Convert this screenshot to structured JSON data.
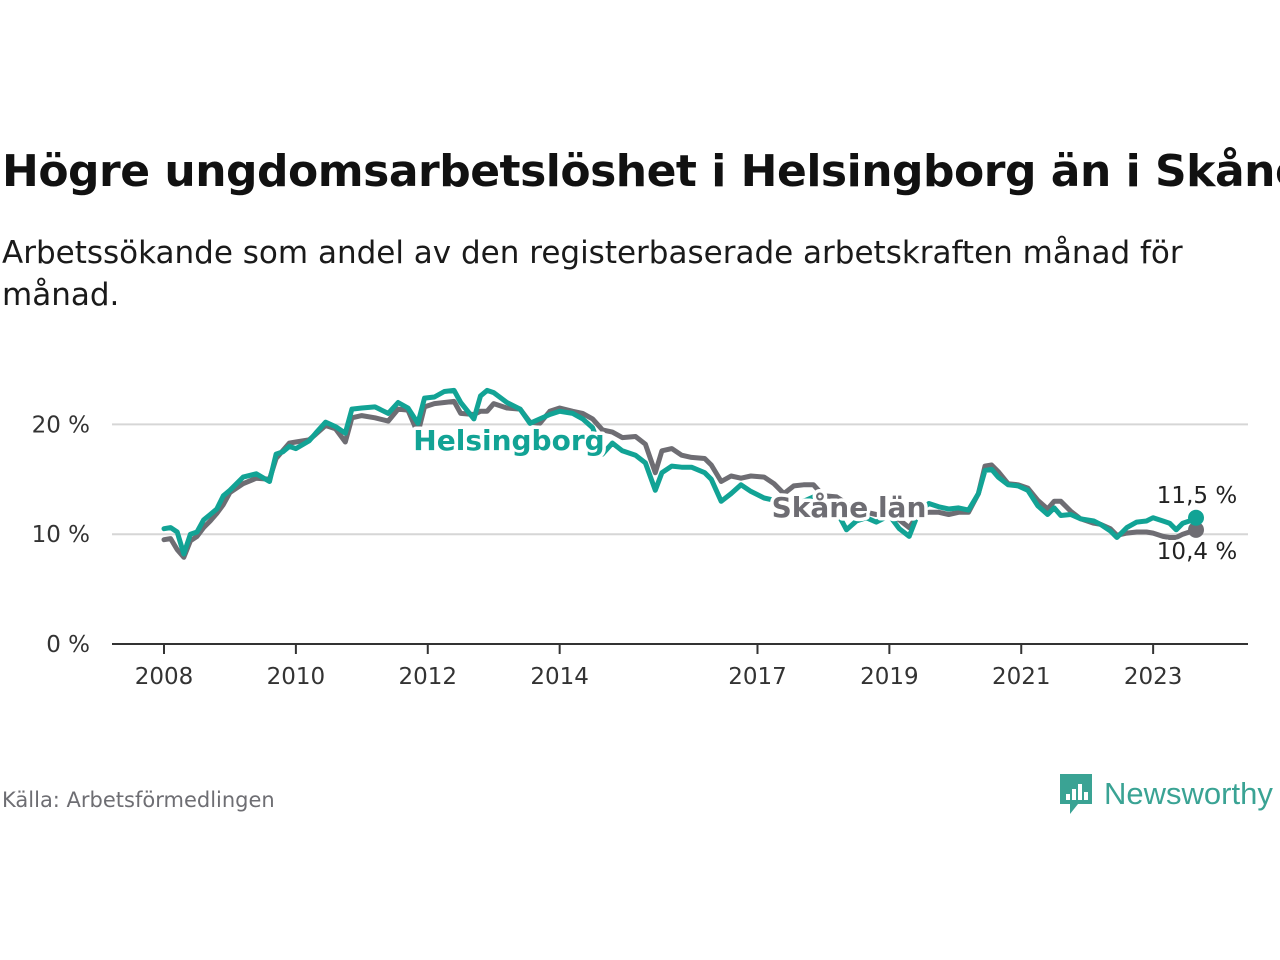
{
  "header": {
    "title": "Högre ungdomsarbetslöshet i Helsingborg än i Skåne",
    "subtitle": "Arbetssökande som andel av den registerbaserade arbetskraften månad för månad."
  },
  "footer": {
    "source": "Källa: Arbetsförmedlingen",
    "brand": "Newsworthy"
  },
  "colors": {
    "helsingborg": "#12a395",
    "skane": "#6e6d73",
    "grid": "#d6d6d6",
    "axis": "#333333",
    "brand": "#3aa394"
  },
  "chart_data": {
    "type": "line",
    "title": "Högre ungdomsarbetslöshet i Helsingborg än i Skåne",
    "xlabel": "",
    "ylabel": "",
    "xlim": [
      2008,
      2023.65
    ],
    "ylim": [
      0,
      23.5
    ],
    "y_ticks": [
      0,
      10,
      20
    ],
    "y_tick_labels": [
      "0 %",
      "10 %",
      "20 %"
    ],
    "x_ticks": [
      2008,
      2010,
      2012,
      2014,
      2017,
      2019,
      2021,
      2023
    ],
    "x_tick_labels": [
      "2008",
      "2010",
      "2012",
      "2014",
      "2017",
      "2019",
      "2021",
      "2023"
    ],
    "grid": true,
    "series": [
      {
        "name": "Skåne län",
        "label": "Skåne län",
        "end_label": "10,4 %",
        "points": [
          [
            2008,
            9.5
          ],
          [
            2008.1,
            9.6
          ],
          [
            2008.2,
            8.6
          ],
          [
            2008.3,
            7.9
          ],
          [
            2008.4,
            9.4
          ],
          [
            2008.5,
            9.8
          ],
          [
            2008.6,
            10.6
          ],
          [
            2008.7,
            11.2
          ],
          [
            2008.8,
            11.9
          ],
          [
            2008.9,
            12.7
          ],
          [
            2009.0,
            13.8
          ],
          [
            2009.2,
            14.6
          ],
          [
            2009.4,
            15.1
          ],
          [
            2009.6,
            15.0
          ],
          [
            2009.7,
            16.9
          ],
          [
            2009.8,
            17.6
          ],
          [
            2009.9,
            18.3
          ],
          [
            2010.0,
            18.4
          ],
          [
            2010.2,
            18.6
          ],
          [
            2010.3,
            19.1
          ],
          [
            2010.45,
            19.9
          ],
          [
            2010.6,
            19.6
          ],
          [
            2010.75,
            18.4
          ],
          [
            2010.85,
            20.6
          ],
          [
            2011.0,
            20.8
          ],
          [
            2011.2,
            20.6
          ],
          [
            2011.4,
            20.3
          ],
          [
            2011.55,
            21.4
          ],
          [
            2011.7,
            21.3
          ],
          [
            2011.85,
            19.2
          ],
          [
            2011.95,
            21.6
          ],
          [
            2012.1,
            21.9
          ],
          [
            2012.25,
            22.0
          ],
          [
            2012.4,
            22.1
          ],
          [
            2012.5,
            21.0
          ],
          [
            2012.7,
            20.9
          ],
          [
            2012.8,
            21.2
          ],
          [
            2012.9,
            21.2
          ],
          [
            2013.0,
            21.9
          ],
          [
            2013.2,
            21.5
          ],
          [
            2013.4,
            21.4
          ],
          [
            2013.55,
            20.2
          ],
          [
            2013.7,
            20.1
          ],
          [
            2013.85,
            21.2
          ],
          [
            2014.0,
            21.5
          ],
          [
            2014.2,
            21.2
          ],
          [
            2014.35,
            21.0
          ],
          [
            2014.5,
            20.5
          ],
          [
            2014.65,
            19.5
          ],
          [
            2014.8,
            19.3
          ],
          [
            2014.95,
            18.8
          ],
          [
            2015.15,
            18.9
          ],
          [
            2015.3,
            18.2
          ],
          [
            2015.45,
            15.6
          ],
          [
            2015.55,
            17.6
          ],
          [
            2015.7,
            17.8
          ],
          [
            2015.85,
            17.2
          ],
          [
            2016.0,
            17.0
          ],
          [
            2016.2,
            16.9
          ],
          [
            2016.3,
            16.3
          ],
          [
            2016.45,
            14.8
          ],
          [
            2016.6,
            15.3
          ],
          [
            2016.75,
            15.1
          ],
          [
            2016.9,
            15.3
          ],
          [
            2017.1,
            15.2
          ],
          [
            2017.25,
            14.6
          ],
          [
            2017.4,
            13.7
          ],
          [
            2017.55,
            14.4
          ],
          [
            2017.7,
            14.5
          ],
          [
            2017.85,
            14.5
          ],
          [
            2018.0,
            13.5
          ],
          [
            2018.2,
            13.4
          ],
          [
            2018.35,
            12.8
          ],
          [
            2018.5,
            12.3
          ],
          [
            2018.65,
            12.0
          ],
          [
            2018.8,
            11.8
          ],
          [
            2019.0,
            11.8
          ],
          [
            2019.15,
            11.3
          ],
          [
            2019.3,
            10.6
          ],
          [
            2019.45,
            11.9
          ],
          [
            2019.6,
            12.0
          ],
          [
            2019.75,
            12.0
          ],
          [
            2019.9,
            11.8
          ],
          [
            2020.05,
            12.0
          ],
          [
            2020.2,
            12.0
          ],
          [
            2020.35,
            13.7
          ],
          [
            2020.45,
            16.2
          ],
          [
            2020.55,
            16.3
          ],
          [
            2020.65,
            15.7
          ],
          [
            2020.8,
            14.6
          ],
          [
            2020.95,
            14.5
          ],
          [
            2021.1,
            14.2
          ],
          [
            2021.25,
            13.1
          ],
          [
            2021.4,
            12.3
          ],
          [
            2021.5,
            13.0
          ],
          [
            2021.6,
            13.0
          ],
          [
            2021.75,
            12.1
          ],
          [
            2021.9,
            11.4
          ],
          [
            2022.1,
            11.0
          ],
          [
            2022.2,
            10.9
          ],
          [
            2022.35,
            10.5
          ],
          [
            2022.45,
            9.9
          ],
          [
            2022.6,
            10.1
          ],
          [
            2022.75,
            10.2
          ],
          [
            2022.9,
            10.2
          ],
          [
            2023.0,
            10.1
          ],
          [
            2023.15,
            9.8
          ],
          [
            2023.25,
            9.7
          ],
          [
            2023.35,
            9.7
          ],
          [
            2023.45,
            10.0
          ],
          [
            2023.55,
            10.2
          ],
          [
            2023.65,
            10.4
          ]
        ]
      },
      {
        "name": "Helsingborg",
        "label": "Helsingborg",
        "end_label": "11,5 %",
        "points": [
          [
            2008,
            10.5
          ],
          [
            2008.1,
            10.6
          ],
          [
            2008.2,
            10.2
          ],
          [
            2008.3,
            8.2
          ],
          [
            2008.4,
            10.0
          ],
          [
            2008.5,
            10.2
          ],
          [
            2008.6,
            11.3
          ],
          [
            2008.7,
            11.8
          ],
          [
            2008.8,
            12.3
          ],
          [
            2008.9,
            13.5
          ],
          [
            2009.0,
            14.0
          ],
          [
            2009.2,
            15.2
          ],
          [
            2009.4,
            15.5
          ],
          [
            2009.6,
            14.8
          ],
          [
            2009.7,
            17.3
          ],
          [
            2009.8,
            17.5
          ],
          [
            2009.9,
            18.0
          ],
          [
            2010.0,
            17.8
          ],
          [
            2010.2,
            18.5
          ],
          [
            2010.3,
            19.2
          ],
          [
            2010.45,
            20.2
          ],
          [
            2010.6,
            19.8
          ],
          [
            2010.75,
            19.2
          ],
          [
            2010.85,
            21.4
          ],
          [
            2011.0,
            21.5
          ],
          [
            2011.2,
            21.6
          ],
          [
            2011.4,
            21.0
          ],
          [
            2011.55,
            22.0
          ],
          [
            2011.7,
            21.5
          ],
          [
            2011.85,
            20.1
          ],
          [
            2011.95,
            22.4
          ],
          [
            2012.1,
            22.5
          ],
          [
            2012.25,
            23.0
          ],
          [
            2012.4,
            23.1
          ],
          [
            2012.5,
            22.0
          ],
          [
            2012.7,
            20.5
          ],
          [
            2012.8,
            22.6
          ],
          [
            2012.9,
            23.1
          ],
          [
            2013.0,
            22.9
          ],
          [
            2013.2,
            22.0
          ],
          [
            2013.4,
            21.4
          ],
          [
            2013.55,
            20.1
          ],
          [
            2013.7,
            20.5
          ],
          [
            2013.85,
            20.9
          ],
          [
            2014.0,
            21.2
          ],
          [
            2014.2,
            21.0
          ],
          [
            2014.35,
            20.5
          ],
          [
            2014.5,
            19.7
          ],
          [
            2014.65,
            17.3
          ],
          [
            2014.8,
            18.3
          ],
          [
            2014.95,
            17.6
          ],
          [
            2015.15,
            17.2
          ],
          [
            2015.3,
            16.5
          ],
          [
            2015.45,
            14.0
          ],
          [
            2015.55,
            15.6
          ],
          [
            2015.7,
            16.2
          ],
          [
            2015.85,
            16.1
          ],
          [
            2016.0,
            16.1
          ],
          [
            2016.2,
            15.6
          ],
          [
            2016.3,
            15.0
          ],
          [
            2016.45,
            13.0
          ],
          [
            2016.6,
            13.7
          ],
          [
            2016.75,
            14.5
          ],
          [
            2016.9,
            13.9
          ],
          [
            2017.1,
            13.3
          ],
          [
            2017.25,
            13.1
          ],
          [
            2017.4,
            12.0
          ],
          [
            2017.55,
            12.8
          ],
          [
            2017.7,
            13.0
          ],
          [
            2017.85,
            13.4
          ],
          [
            2018.0,
            12.7
          ],
          [
            2018.2,
            12.1
          ],
          [
            2018.35,
            10.4
          ],
          [
            2018.5,
            11.2
          ],
          [
            2018.65,
            11.5
          ],
          [
            2018.8,
            11.1
          ],
          [
            2019.0,
            11.7
          ],
          [
            2019.15,
            10.5
          ],
          [
            2019.3,
            9.8
          ],
          [
            2019.45,
            12.1
          ],
          [
            2019.6,
            12.8
          ],
          [
            2019.75,
            12.5
          ],
          [
            2019.9,
            12.3
          ],
          [
            2020.05,
            12.4
          ],
          [
            2020.2,
            12.2
          ],
          [
            2020.35,
            13.7
          ],
          [
            2020.45,
            15.8
          ],
          [
            2020.55,
            15.9
          ],
          [
            2020.65,
            15.2
          ],
          [
            2020.8,
            14.5
          ],
          [
            2020.95,
            14.4
          ],
          [
            2021.1,
            14.0
          ],
          [
            2021.25,
            12.6
          ],
          [
            2021.4,
            11.8
          ],
          [
            2021.5,
            12.4
          ],
          [
            2021.6,
            11.7
          ],
          [
            2021.75,
            11.8
          ],
          [
            2021.9,
            11.4
          ],
          [
            2022.1,
            11.2
          ],
          [
            2022.2,
            10.9
          ],
          [
            2022.35,
            10.3
          ],
          [
            2022.45,
            9.7
          ],
          [
            2022.6,
            10.6
          ],
          [
            2022.75,
            11.1
          ],
          [
            2022.9,
            11.2
          ],
          [
            2023.0,
            11.5
          ],
          [
            2023.15,
            11.2
          ],
          [
            2023.25,
            11.0
          ],
          [
            2023.35,
            10.4
          ],
          [
            2023.45,
            11.0
          ],
          [
            2023.55,
            11.2
          ],
          [
            2023.65,
            11.5
          ]
        ]
      }
    ]
  }
}
